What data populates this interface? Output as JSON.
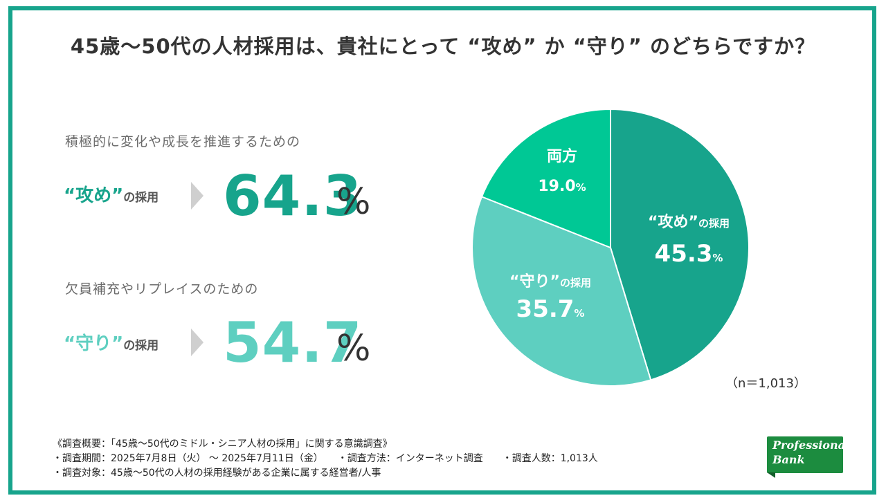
{
  "title": "45歳〜50代の人材採用は、貴社にとって “攻め” か “守り” のどちらですか？",
  "colors": {
    "frame": "#17a48c",
    "attack": "#17a48c",
    "defend": "#5ecfc0",
    "both": "#00c895",
    "gray_text": "#6b6b6b"
  },
  "stats": {
    "attack": {
      "lead": "積極的に変化や成長を推進するための",
      "quote": "“攻め”",
      "suffix": "の採用",
      "value": "64.3",
      "unit": "%"
    },
    "defend": {
      "lead": "欠員補充やリプレイスのための",
      "quote": "“守り”",
      "suffix": "の採用",
      "value": "54.7",
      "unit": "%"
    }
  },
  "chart_data": {
    "type": "pie",
    "unit": "%",
    "slices": [
      {
        "label_main": "“攻め”",
        "label_sub": "の採用",
        "value": 45.3,
        "color": "#17a48c"
      },
      {
        "label_main": "“守り”",
        "label_sub": "の採用",
        "value": 35.7,
        "color": "#5ecfc0"
      },
      {
        "label_main": "両方",
        "label_sub": "",
        "value": 19.0,
        "color": "#00c895"
      }
    ],
    "value_labels": [
      "45.3",
      "35.7",
      "19.0"
    ],
    "note": "（n＝1,013）"
  },
  "footer": {
    "line1": "《調査概要：「45歳〜50代のミドル・シニア人材の採用」に関する意識調査》",
    "line2": "・調査期間：2025年7月8日（火） 〜 2025年7月11日（金）　　・調査方法：インターネット調査　　・調査人数：1,013人",
    "line3": "・調査対象：45歳〜50代の人材の採用経験がある企業に属する経営者/人事"
  },
  "logo": {
    "line1": "Professional",
    "line2": "Bank"
  }
}
